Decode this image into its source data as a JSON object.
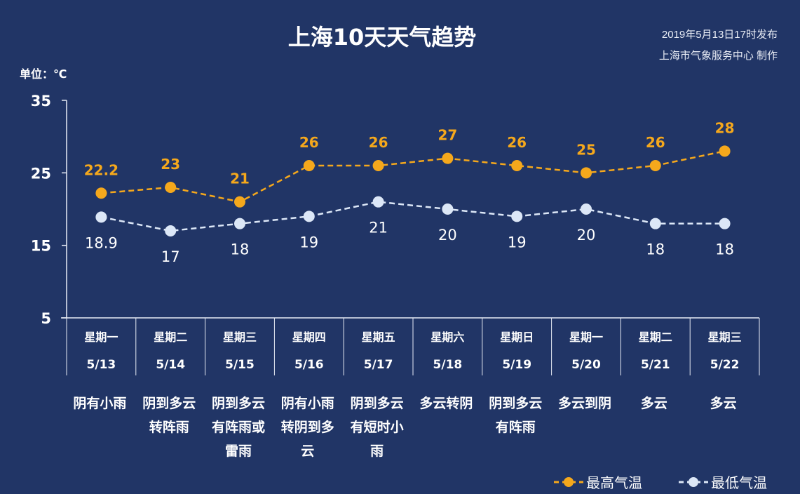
{
  "header": {
    "title": "上海10天天气趋势",
    "publish_time": "2019年5月13日17时发布",
    "producer": "上海市气象服务中心 制作",
    "unit": "单位：℃"
  },
  "colors": {
    "background": "#213566",
    "high": "#f5a81c",
    "low": "#dce7f7"
  },
  "chart_data": {
    "type": "line",
    "title": "上海10天天气趋势",
    "ylabel": "单位：℃",
    "ylim": [
      5,
      35
    ],
    "yticks": [
      "35",
      "25",
      "15",
      "5"
    ],
    "ytick_values": [
      35,
      25,
      15,
      5
    ],
    "weekdays": [
      "星期一",
      "星期二",
      "星期三",
      "星期四",
      "星期五",
      "星期六",
      "星期日",
      "星期一",
      "星期二",
      "星期三"
    ],
    "categories": [
      "5/13",
      "5/14",
      "5/15",
      "5/16",
      "5/17",
      "5/18",
      "5/19",
      "5/20",
      "5/21",
      "5/22"
    ],
    "weather": [
      [
        "阴有小雨"
      ],
      [
        "阴到多云",
        "转阵雨"
      ],
      [
        "阴到多云",
        "有阵雨或",
        "雷雨"
      ],
      [
        "阴有小雨",
        "转阴到多",
        "云"
      ],
      [
        "阴到多云",
        "有短时小",
        "雨"
      ],
      [
        "多云转阴"
      ],
      [
        "阴到多云",
        "有阵雨"
      ],
      [
        "多云到阴"
      ],
      [
        "多云"
      ],
      [
        "多云"
      ]
    ],
    "series": [
      {
        "name": "最高气温",
        "values": [
          22.2,
          23,
          21,
          26,
          26,
          27,
          26,
          25,
          26,
          28
        ],
        "labels": [
          "22.2",
          "23",
          "21",
          "26",
          "26",
          "27",
          "26",
          "25",
          "26",
          "28"
        ]
      },
      {
        "name": "最低气温",
        "values": [
          18.9,
          17,
          18,
          19,
          21,
          20,
          19,
          20,
          18,
          18
        ],
        "labels": [
          "18.9",
          "17",
          "18",
          "19",
          "21",
          "20",
          "19",
          "20",
          "18",
          "18"
        ]
      }
    ],
    "legend": "bottom-right",
    "grid": false
  }
}
